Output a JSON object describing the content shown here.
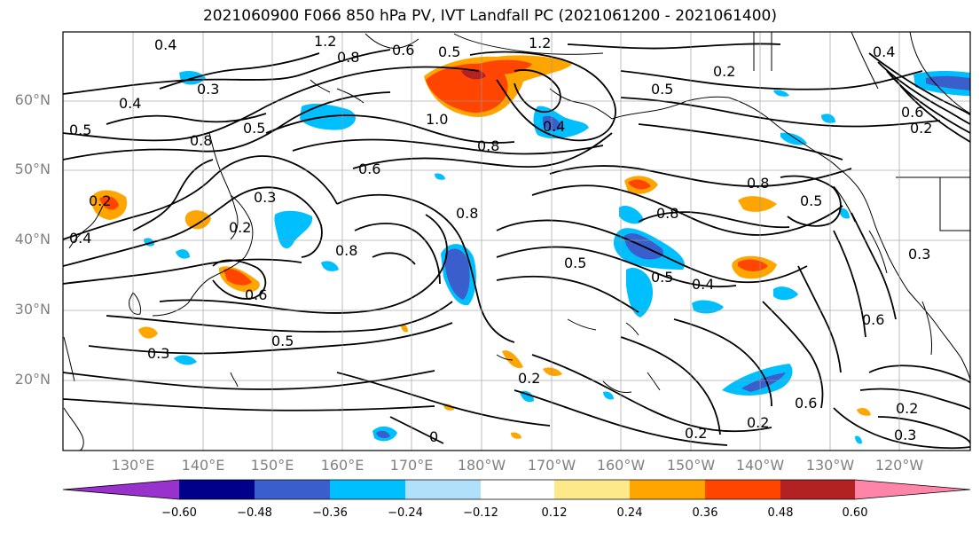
{
  "title": "2021060900 F066 850 hPa PV, IVT Landfall PC (2021061200 - 2021061400)",
  "y_ticks": [
    "60°N",
    "50°N",
    "40°N",
    "30°N",
    "20°N"
  ],
  "x_ticks": [
    "130°E",
    "140°E",
    "150°E",
    "160°E",
    "170°E",
    "180°W",
    "170°W",
    "160°W",
    "150°W",
    "140°W",
    "130°W",
    "120°W"
  ],
  "colorbar": {
    "ticks": [
      "−0.60",
      "−0.48",
      "−0.36",
      "−0.24",
      "−0.12",
      "0.12",
      "0.24",
      "0.36",
      "0.48",
      "0.60"
    ],
    "colors": [
      "#9932cc",
      "#00008b",
      "#3a5fcd",
      "#00bfff",
      "#b0e0fa",
      "#ffffff",
      "#fde98a",
      "#ffa500",
      "#ff4500",
      "#b22222",
      "#ff85a8"
    ]
  },
  "contour_labels": {
    "c1": "0.4",
    "c2": "1.2",
    "c3": "0.8",
    "c4": "0.6",
    "c5": "0.5",
    "c6": "1.2",
    "c7": "0.3",
    "c8": "0.2",
    "c9": "0.4",
    "c10": "0.4",
    "c11": "0.5",
    "c12": "0.8",
    "c13": "0.5",
    "c14": "1.0",
    "c15": "0.4",
    "c16": "0.8",
    "c17": "0.6",
    "c18": "0.8",
    "c19": "0.5",
    "c20": "0.2",
    "c21": "0.3",
    "c22": "0.2",
    "c23": "0.8",
    "c24": "0.8",
    "c25": "0.5",
    "c26": "0.4",
    "c27": "0.5",
    "c28": "0.8",
    "c29": "0.6",
    "c30": "0.5",
    "c31": "0.4",
    "c32": "0.3",
    "c33": "0.6",
    "c34": "0.5",
    "c35": "0.3",
    "c36": "0.2",
    "c37": "0.2",
    "c38": "0.6",
    "c39": "0.2",
    "c40": "0.2",
    "c41": "0.3",
    "c42": "0.6",
    "c43": "0.2",
    "c44": "0"
  }
}
